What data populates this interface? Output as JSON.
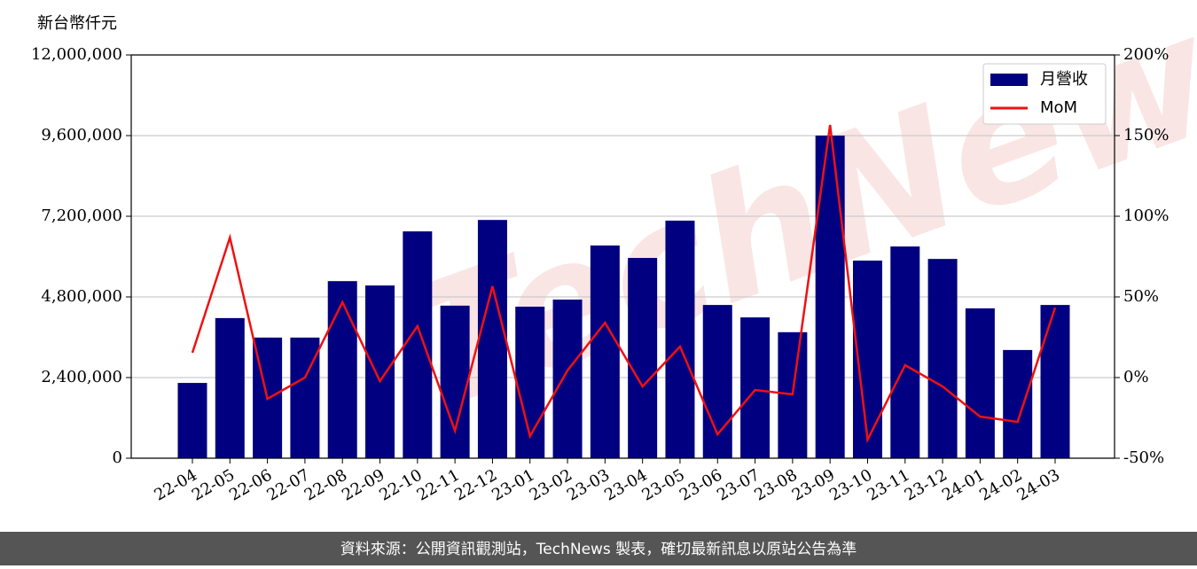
{
  "chart_data": {
    "type": "bar_line",
    "y_axis_label": "新台幣仟元",
    "watermark": "TechNews",
    "source": "資料來源：公開資訊觀測站，TechNews 製表，確切最新訊息以原站公告為準",
    "categories": [
      "22-04",
      "22-05",
      "22-06",
      "22-07",
      "22-08",
      "22-09",
      "22-10",
      "22-11",
      "22-12",
      "23-01",
      "23-02",
      "23-03",
      "23-04",
      "23-05",
      "23-06",
      "23-07",
      "23-08",
      "23-09",
      "23-10",
      "23-11",
      "23-12",
      "24-01",
      "24-02",
      "24-03"
    ],
    "series": [
      {
        "name": "月營收",
        "type": "bar",
        "color": "#000080",
        "values": [
          2240000,
          4170000,
          3590000,
          3590000,
          5270000,
          5140000,
          6750000,
          4540000,
          7090000,
          4510000,
          4720000,
          6330000,
          5960000,
          7070000,
          4560000,
          4190000,
          3750000,
          9600000,
          5880000,
          6300000,
          5930000,
          4460000,
          3220000,
          4560000
        ]
      },
      {
        "name": "MoM",
        "type": "line",
        "axis": "y2",
        "color": "#ee1111",
        "values": [
          15.4,
          86.8,
          -13.2,
          0,
          46.7,
          -2.2,
          31.9,
          -33,
          56.6,
          -36.3,
          4.4,
          34,
          -5.5,
          19.2,
          -35.2,
          -7.7,
          -10.4,
          156.6,
          -38.5,
          7.7,
          -5.5,
          -24.2,
          -27.5,
          43.4
        ]
      }
    ],
    "ylim": [
      0,
      12000000
    ],
    "yticks": [
      0,
      {
        "value": 2400000,
        "label": "2,400,000"
      },
      {
        "value": 4800000,
        "label": "4,800,000"
      },
      {
        "value": 7200000,
        "label": "7,200,000"
      },
      {
        "value": 9600000,
        "label": "9,600,000"
      },
      {
        "value": 12000000,
        "label": "12,000,000"
      }
    ],
    "y2lim": [
      -50,
      200
    ],
    "y2ticks": [
      {
        "value": -50,
        "label": "-50%"
      },
      {
        "value": 0,
        "label": "0%"
      },
      {
        "value": 50,
        "label": "50%"
      },
      {
        "value": 100,
        "label": "100%"
      },
      {
        "value": 150,
        "label": "150%"
      },
      {
        "value": 200,
        "label": "200%"
      }
    ],
    "grid": true,
    "legend": "upper right"
  }
}
